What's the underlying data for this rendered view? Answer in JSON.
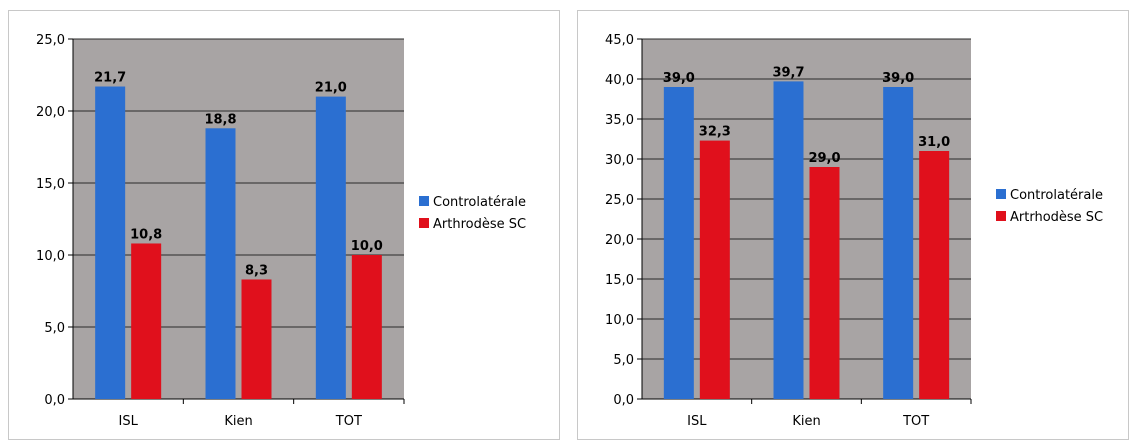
{
  "colors": {
    "plot_background": "#a8a4a4",
    "gridline": "#2a2a2a",
    "series_controlaterale": "#2b6fd1",
    "series_arthrodese": "#e0101c"
  },
  "chart_data": [
    {
      "type": "bar",
      "categories": [
        "ISL",
        "Kien",
        "TOT"
      ],
      "series": [
        {
          "name": "Controlatérale",
          "values": [
            21.7,
            18.8,
            21.0
          ],
          "labels": [
            "21,7",
            "18,8",
            "21,0"
          ]
        },
        {
          "name": "Arthrodèse SC",
          "values": [
            10.8,
            8.3,
            10.0
          ],
          "labels": [
            "10,8",
            "8,3",
            "10,0"
          ]
        }
      ],
      "ylim": [
        0,
        25
      ],
      "yticks": [
        0,
        5,
        10,
        15,
        20,
        25
      ],
      "ytick_labels": [
        "0,0",
        "5,0",
        "10,0",
        "15,0",
        "20,0",
        "25,0"
      ],
      "grid": true,
      "legend_position": "right"
    },
    {
      "type": "bar",
      "categories": [
        "ISL",
        "Kien",
        "TOT"
      ],
      "series": [
        {
          "name": "Controlatérale",
          "values": [
            39.0,
            39.7,
            39.0
          ],
          "labels": [
            "39,0",
            "39,7",
            "39,0"
          ]
        },
        {
          "name": "Artrhodèse SC",
          "values": [
            32.3,
            29.0,
            31.0
          ],
          "labels": [
            "32,3",
            "29,0",
            "31,0"
          ]
        }
      ],
      "ylim": [
        0,
        45
      ],
      "yticks": [
        0,
        5,
        10,
        15,
        20,
        25,
        30,
        35,
        40,
        45
      ],
      "ytick_labels": [
        "0,0",
        "5,0",
        "10,0",
        "15,0",
        "20,0",
        "25,0",
        "30,0",
        "35,0",
        "40,0",
        "45,0"
      ],
      "grid": true,
      "legend_position": "right"
    }
  ]
}
